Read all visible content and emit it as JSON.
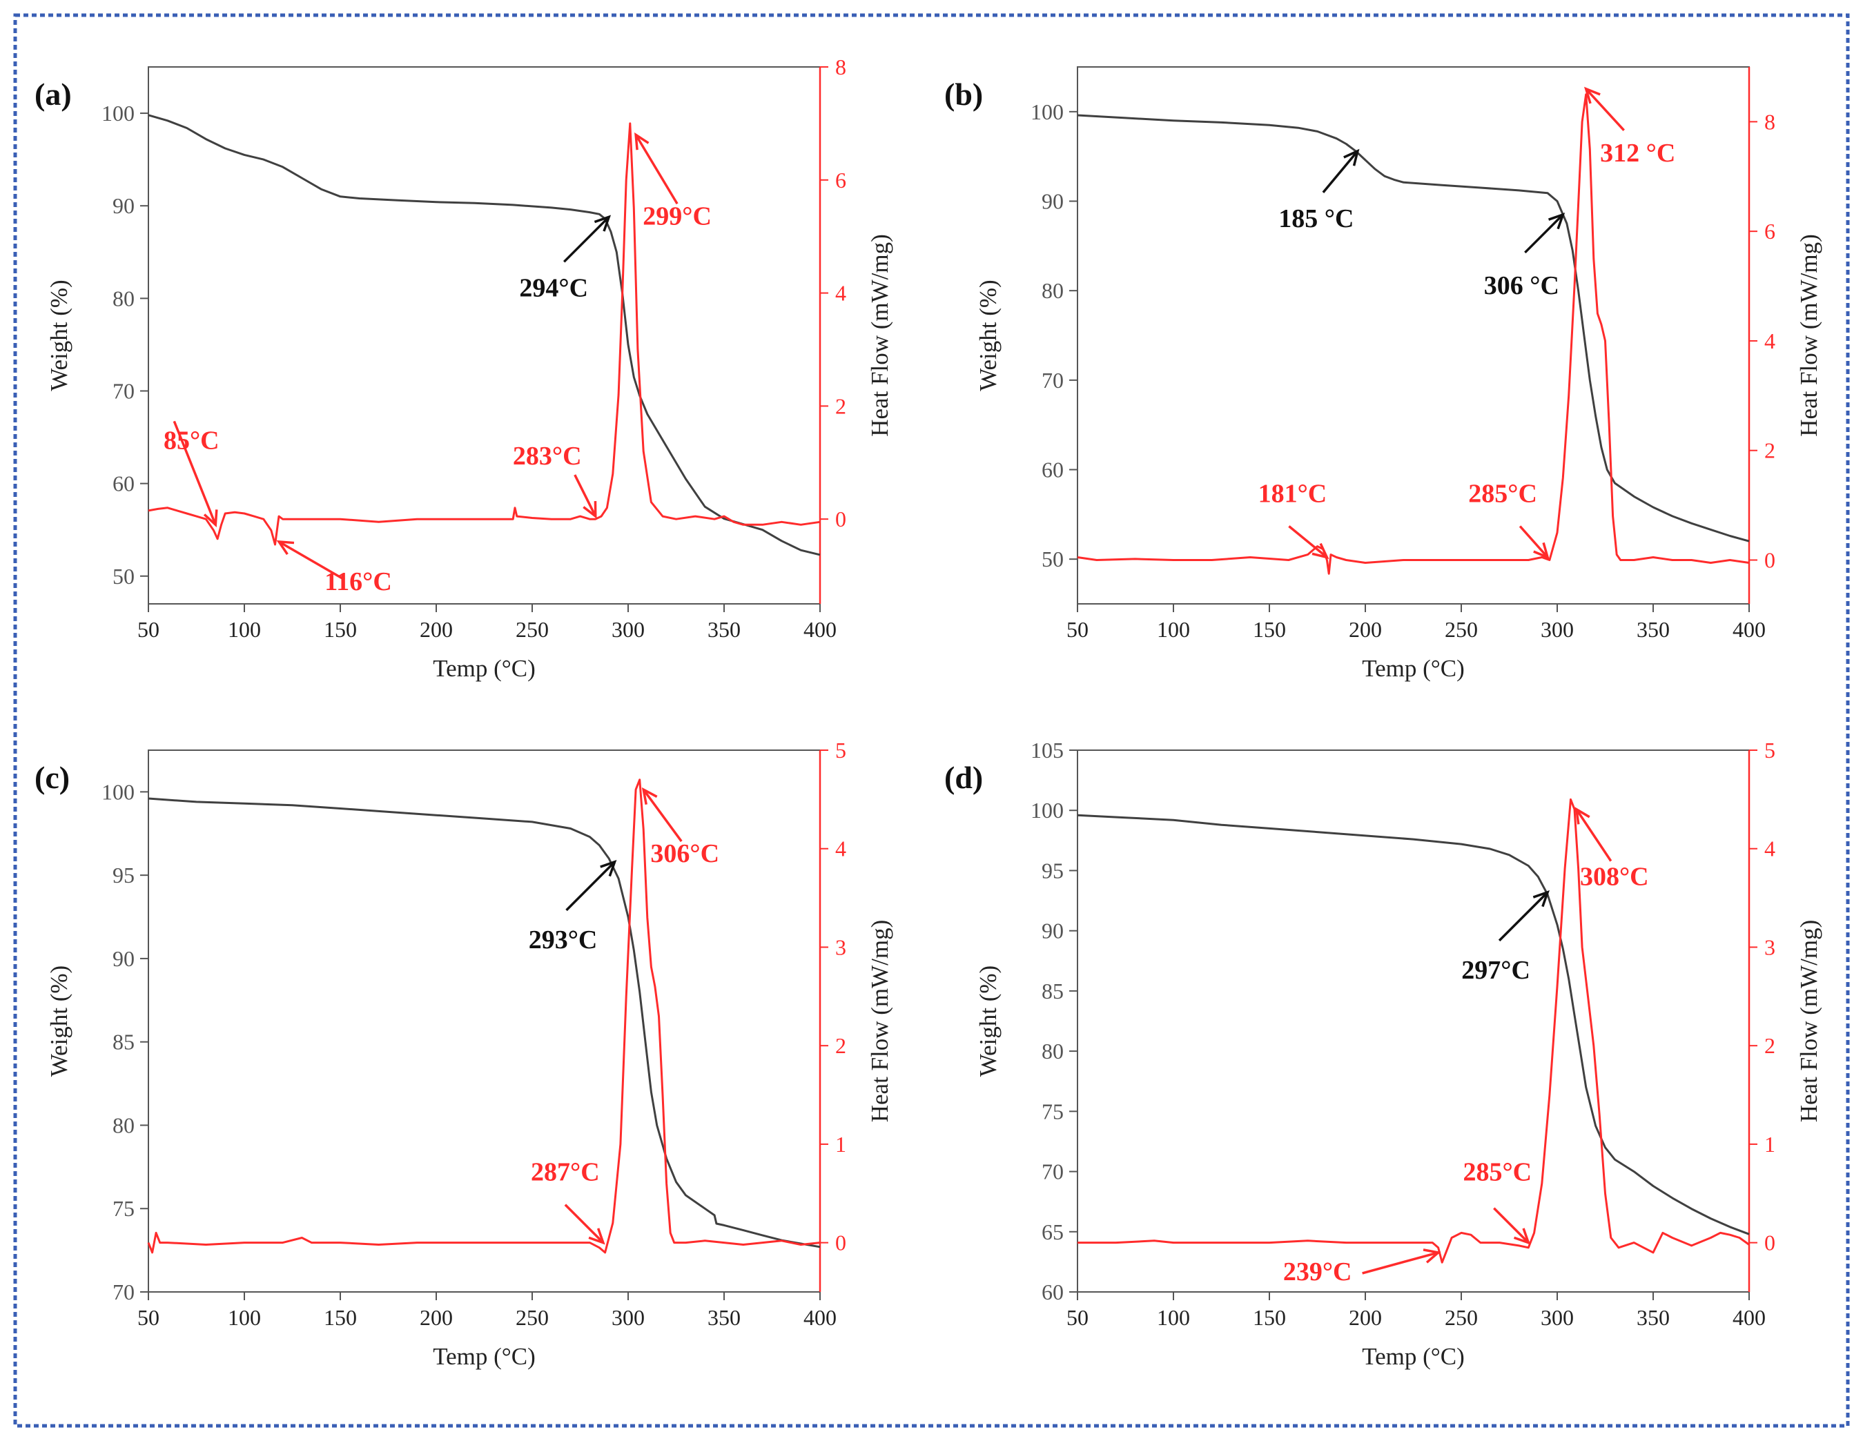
{
  "colors": {
    "tga": "#404040",
    "dsc": "#ff2b2b",
    "frame": "#3a5fb5",
    "axis": "#555555"
  },
  "chart_data": [
    {
      "type": "line",
      "panel_label": "(a)",
      "xlabel": "Temp (°C)",
      "ylabel": "Weight (%)",
      "y2label": "Heat Flow (mW/mg)",
      "xlim": [
        50,
        400
      ],
      "ylim": [
        47,
        105
      ],
      "y2lim": [
        -1.5,
        8
      ],
      "xticks": [
        50,
        100,
        150,
        200,
        250,
        300,
        350,
        400
      ],
      "yticks": [
        50,
        60,
        70,
        80,
        90,
        100
      ],
      "y2ticks": [
        0,
        2,
        4,
        6,
        8
      ],
      "series": [
        {
          "name": "Weight",
          "axis": "left",
          "x": [
            50,
            60,
            70,
            80,
            90,
            100,
            110,
            120,
            130,
            140,
            150,
            160,
            180,
            200,
            220,
            240,
            260,
            270,
            280,
            285,
            288,
            291,
            294,
            297,
            300,
            303,
            306,
            310,
            320,
            330,
            340,
            350,
            360,
            370,
            380,
            390,
            400
          ],
          "y": [
            99.8,
            99.2,
            98.4,
            97.2,
            96.2,
            95.5,
            95.0,
            94.2,
            93.0,
            91.8,
            91.0,
            90.8,
            90.6,
            90.4,
            90.3,
            90.1,
            89.8,
            89.6,
            89.3,
            89.1,
            88.6,
            87.2,
            85.0,
            80.5,
            75.0,
            71.5,
            69.5,
            67.5,
            64.0,
            60.5,
            57.5,
            56.2,
            55.6,
            55.0,
            53.8,
            52.8,
            52.3
          ]
        },
        {
          "name": "Heat Flow",
          "axis": "right",
          "x": [
            50,
            55,
            60,
            65,
            70,
            75,
            80,
            84,
            86,
            88,
            90,
            95,
            100,
            105,
            110,
            114,
            116,
            118,
            120,
            130,
            150,
            170,
            190,
            210,
            230,
            240,
            241,
            242,
            250,
            260,
            270,
            275,
            280,
            283,
            286,
            289,
            292,
            295,
            297,
            299,
            301,
            303,
            305,
            308,
            312,
            318,
            325,
            335,
            345,
            350,
            355,
            360,
            370,
            380,
            390,
            400
          ],
          "y": [
            0.15,
            0.18,
            0.2,
            0.15,
            0.1,
            0.05,
            0.0,
            -0.2,
            -0.35,
            -0.1,
            0.1,
            0.12,
            0.1,
            0.05,
            0.0,
            -0.2,
            -0.45,
            0.05,
            0.0,
            0.0,
            0.0,
            -0.05,
            0.0,
            0.0,
            0.0,
            0.0,
            0.2,
            0.05,
            0.02,
            0.0,
            0.0,
            0.05,
            0.0,
            0.0,
            0.05,
            0.2,
            0.8,
            2.2,
            4.0,
            6.0,
            7.0,
            5.5,
            3.0,
            1.2,
            0.3,
            0.05,
            0.0,
            0.05,
            0.0,
            0.05,
            -0.05,
            -0.1,
            -0.1,
            -0.05,
            -0.1,
            -0.05
          ]
        }
      ],
      "annotations": [
        {
          "text": "85°C",
          "color": "red",
          "x": 85,
          "y": -0.1,
          "axis": "right"
        },
        {
          "text": "116°C",
          "color": "red",
          "x": 118,
          "y": -0.4,
          "axis": "right"
        },
        {
          "text": "283°C",
          "color": "red",
          "x": 283,
          "y": 0.05,
          "axis": "right"
        },
        {
          "text": "299°C",
          "color": "red",
          "x": 304,
          "y": 6.8,
          "axis": "right"
        },
        {
          "text": "294°C",
          "color": "black",
          "x": 290,
          "y": 88.8,
          "axis": "left"
        }
      ]
    },
    {
      "type": "line",
      "panel_label": "(b)",
      "xlabel": "Temp (°C)",
      "ylabel": "Weight (%)",
      "y2label": "Heat Flow (mW/mg)",
      "xlim": [
        50,
        400
      ],
      "ylim": [
        45,
        105
      ],
      "y2lim": [
        -0.8,
        9
      ],
      "xticks": [
        50,
        100,
        150,
        200,
        250,
        300,
        350,
        400
      ],
      "yticks": [
        50,
        60,
        70,
        80,
        90,
        100
      ],
      "y2ticks": [
        0,
        2,
        4,
        6,
        8
      ],
      "series": [
        {
          "name": "Weight",
          "axis": "left",
          "x": [
            50,
            75,
            100,
            125,
            150,
            165,
            175,
            185,
            190,
            195,
            200,
            205,
            210,
            215,
            220,
            240,
            260,
            280,
            295,
            300,
            305,
            308,
            311,
            314,
            317,
            320,
            323,
            326,
            330,
            340,
            350,
            360,
            370,
            380,
            390,
            400
          ],
          "y": [
            99.6,
            99.3,
            99.0,
            98.8,
            98.5,
            98.2,
            97.8,
            97.0,
            96.4,
            95.6,
            94.6,
            93.6,
            92.8,
            92.4,
            92.1,
            91.8,
            91.5,
            91.2,
            90.9,
            90.0,
            87.5,
            84.5,
            80.0,
            75.0,
            70.0,
            66.0,
            62.5,
            60.0,
            58.5,
            57.0,
            55.8,
            54.8,
            54.0,
            53.3,
            52.6,
            52.0
          ]
        },
        {
          "name": "Heat Flow",
          "axis": "right",
          "x": [
            50,
            60,
            80,
            100,
            120,
            140,
            160,
            170,
            175,
            178,
            180,
            181,
            182,
            185,
            190,
            200,
            220,
            240,
            260,
            280,
            285,
            292,
            296,
            300,
            303,
            306,
            309,
            311,
            313,
            315,
            317,
            319,
            321,
            323,
            325,
            327,
            329,
            331,
            333,
            340,
            350,
            360,
            370,
            380,
            390,
            400
          ],
          "y": [
            0.05,
            0.0,
            0.02,
            0.0,
            0.0,
            0.05,
            0.0,
            0.1,
            0.25,
            0.2,
            0.0,
            -0.25,
            0.1,
            0.05,
            0.0,
            -0.05,
            0.0,
            0.0,
            0.0,
            0.0,
            0.0,
            0.05,
            0.0,
            0.5,
            1.5,
            3.0,
            5.0,
            6.5,
            8.0,
            8.5,
            7.5,
            5.5,
            4.5,
            4.3,
            4.0,
            2.5,
            0.8,
            0.1,
            0.0,
            0.0,
            0.05,
            0.0,
            0.0,
            -0.05,
            0.0,
            -0.05
          ]
        }
      ],
      "annotations": [
        {
          "text": "185 °C",
          "color": "black",
          "x": 196,
          "y": 95.6,
          "axis": "left"
        },
        {
          "text": "306 °C",
          "color": "black",
          "x": 303,
          "y": 88.5,
          "axis": "left"
        },
        {
          "text": "181°C",
          "color": "red",
          "x": 180,
          "y": 0.05,
          "axis": "right"
        },
        {
          "text": "285°C",
          "color": "red",
          "x": 295,
          "y": 0.05,
          "axis": "right"
        },
        {
          "text": "312 °C",
          "color": "red",
          "x": 315,
          "y": 8.6,
          "axis": "right"
        }
      ]
    },
    {
      "type": "line",
      "panel_label": "(c)",
      "xlabel": "Temp (°C)",
      "ylabel": "Weight (%)",
      "y2label": "Heat Flow (mW/mg)",
      "xlim": [
        50,
        400
      ],
      "ylim": [
        70,
        102.5
      ],
      "y2lim": [
        -0.5,
        5
      ],
      "xticks": [
        50,
        100,
        150,
        200,
        250,
        300,
        350,
        400
      ],
      "yticks": [
        70,
        75,
        80,
        85,
        90,
        95,
        100
      ],
      "y2ticks": [
        0,
        1,
        2,
        3,
        4,
        5
      ],
      "series": [
        {
          "name": "Weight",
          "axis": "left",
          "x": [
            50,
            75,
            100,
            125,
            150,
            175,
            200,
            225,
            250,
            270,
            280,
            285,
            290,
            295,
            300,
            303,
            306,
            309,
            312,
            315,
            320,
            325,
            330,
            340,
            345,
            346,
            350,
            360,
            370,
            380,
            390,
            400
          ],
          "y": [
            99.6,
            99.4,
            99.3,
            99.2,
            99.0,
            98.8,
            98.6,
            98.4,
            98.2,
            97.8,
            97.3,
            96.8,
            96.0,
            94.8,
            92.5,
            90.5,
            88.0,
            85.0,
            82.0,
            80.0,
            78.0,
            76.6,
            75.8,
            75.0,
            74.6,
            74.1,
            74.0,
            73.7,
            73.4,
            73.1,
            72.9,
            72.7
          ]
        },
        {
          "name": "Heat Flow",
          "axis": "right",
          "x": [
            50,
            52,
            54,
            56,
            60,
            80,
            100,
            120,
            130,
            135,
            150,
            170,
            190,
            210,
            230,
            250,
            270,
            280,
            285,
            288,
            292,
            296,
            299,
            302,
            304,
            306,
            308,
            310,
            312,
            314,
            316,
            318,
            320,
            322,
            324,
            330,
            340,
            350,
            360,
            370,
            380,
            390,
            400
          ],
          "y": [
            0.0,
            -0.1,
            0.1,
            0.0,
            0.0,
            -0.02,
            0.0,
            0.0,
            0.05,
            0.0,
            0.0,
            -0.02,
            0.0,
            0.0,
            0.0,
            0.0,
            0.0,
            0.0,
            -0.05,
            -0.1,
            0.2,
            1.0,
            2.5,
            3.8,
            4.6,
            4.7,
            4.2,
            3.3,
            2.8,
            2.6,
            2.3,
            1.5,
            0.6,
            0.1,
            0.0,
            0.0,
            0.02,
            0.0,
            -0.02,
            0.0,
            0.02,
            -0.02,
            0.0
          ]
        }
      ],
      "annotations": [
        {
          "text": "293°C",
          "color": "black",
          "x": 293,
          "y": 95.8,
          "axis": "left"
        },
        {
          "text": "306°C",
          "color": "red",
          "x": 308,
          "y": 4.6,
          "axis": "right"
        },
        {
          "text": "287°C",
          "color": "red",
          "x": 287,
          "y": 0.0,
          "axis": "right"
        }
      ]
    },
    {
      "type": "line",
      "panel_label": "(d)",
      "xlabel": "Temp (°C)",
      "ylabel": "Weight (%)",
      "y2label": "Heat Flow (mW/mg)",
      "xlim": [
        50,
        400
      ],
      "ylim": [
        60,
        105
      ],
      "y2lim": [
        -0.5,
        5
      ],
      "xticks": [
        50,
        100,
        150,
        200,
        250,
        300,
        350,
        400
      ],
      "yticks": [
        60,
        65,
        70,
        75,
        80,
        85,
        90,
        95,
        100,
        105
      ],
      "y2ticks": [
        0,
        1,
        2,
        3,
        4,
        5
      ],
      "series": [
        {
          "name": "Weight",
          "axis": "left",
          "x": [
            50,
            75,
            100,
            125,
            150,
            175,
            200,
            225,
            250,
            265,
            275,
            285,
            290,
            295,
            300,
            303,
            306,
            309,
            312,
            315,
            320,
            325,
            330,
            340,
            350,
            360,
            370,
            380,
            390,
            400
          ],
          "y": [
            99.6,
            99.4,
            99.2,
            98.8,
            98.5,
            98.2,
            97.9,
            97.6,
            97.2,
            96.8,
            96.3,
            95.4,
            94.5,
            93.0,
            90.5,
            88.5,
            86.0,
            83.0,
            80.0,
            77.0,
            73.8,
            72.0,
            71.0,
            70.0,
            68.8,
            67.8,
            66.9,
            66.1,
            65.4,
            64.8
          ]
        },
        {
          "name": "Heat Flow",
          "axis": "right",
          "x": [
            50,
            70,
            90,
            100,
            110,
            130,
            150,
            170,
            190,
            210,
            230,
            235,
            238,
            240,
            242,
            245,
            250,
            255,
            260,
            270,
            280,
            285,
            288,
            292,
            296,
            300,
            304,
            307,
            309,
            311,
            313,
            316,
            319,
            322,
            325,
            328,
            332,
            340,
            345,
            350,
            355,
            360,
            370,
            380,
            385,
            390,
            395,
            400
          ],
          "y": [
            0.0,
            0.0,
            0.02,
            0.0,
            0.0,
            0.0,
            0.0,
            0.02,
            0.0,
            0.0,
            0.0,
            0.0,
            -0.05,
            -0.2,
            -0.1,
            0.05,
            0.1,
            0.08,
            0.0,
            0.0,
            -0.03,
            -0.05,
            0.1,
            0.6,
            1.5,
            2.6,
            3.8,
            4.5,
            4.4,
            3.8,
            3.0,
            2.5,
            2.0,
            1.3,
            0.5,
            0.05,
            -0.05,
            0.0,
            -0.05,
            -0.1,
            0.1,
            0.05,
            -0.03,
            0.05,
            0.1,
            0.08,
            0.05,
            -0.02
          ]
        }
      ],
      "annotations": [
        {
          "text": "297°C",
          "color": "black",
          "x": 295,
          "y": 93.2,
          "axis": "left"
        },
        {
          "text": "308°C",
          "color": "red",
          "x": 310,
          "y": 4.4,
          "axis": "right"
        },
        {
          "text": "285°C",
          "color": "red",
          "x": 285,
          "y": 0.0,
          "axis": "right"
        },
        {
          "text": "239°C",
          "color": "red",
          "x": 238,
          "y": -0.1,
          "axis": "right"
        }
      ]
    }
  ]
}
